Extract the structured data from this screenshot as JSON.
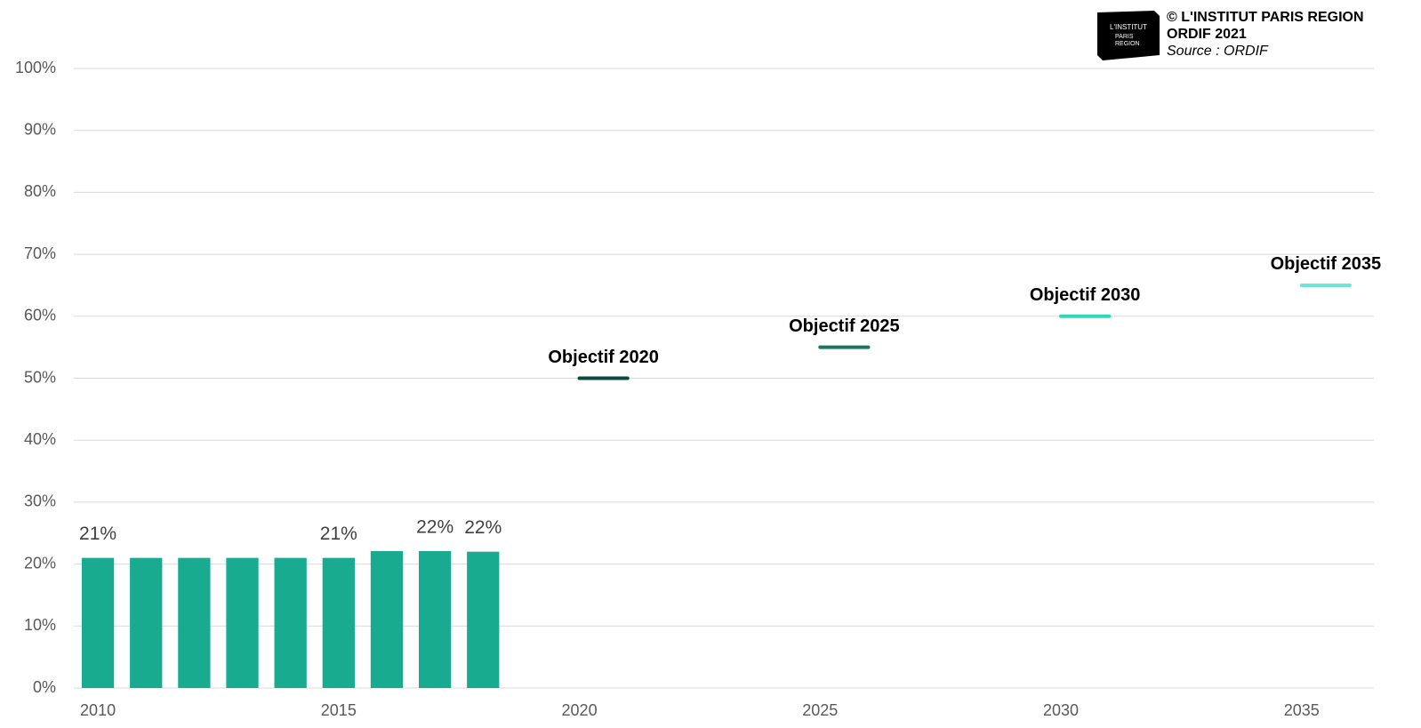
{
  "chart_data": {
    "type": "bar",
    "credit": [
      "© L'INSTITUT PARIS REGION",
      "ORDIF 2021"
    ],
    "source": "Source : ORDIF",
    "logo": [
      "L'INSTITUT",
      "PARIS",
      "REGION"
    ],
    "x": [
      2010,
      2011,
      2012,
      2013,
      2014,
      2015,
      2016,
      2017,
      2018
    ],
    "values": [
      21,
      21,
      21,
      21,
      21,
      21,
      22.1,
      22.1,
      22
    ],
    "value_labels": [
      "21%",
      null,
      null,
      null,
      null,
      "21%",
      null,
      "22%",
      "22%"
    ],
    "color": "#18ab8f",
    "objectives": [
      {
        "label": "Objectif 2020",
        "x": 2020,
        "value": 50,
        "color": "#0b4a3b"
      },
      {
        "label": "Objectif 2025",
        "x": 2025,
        "value": 55,
        "color": "#17775f"
      },
      {
        "label": "Objectif 2030",
        "x": 2030,
        "value": 60,
        "color": "#2ed8b5"
      },
      {
        "label": "Objectif 2035",
        "x": 2035,
        "value": 65,
        "color": "#6de6d3"
      }
    ],
    "xlim": [
      2009.5,
      2036.5
    ],
    "xticks": [
      2010,
      2015,
      2020,
      2025,
      2030,
      2035
    ],
    "ylim": [
      0,
      100
    ],
    "yticks": [
      {
        "value": 0,
        "label": "0%"
      },
      {
        "value": 10,
        "label": "10%"
      },
      {
        "value": 20,
        "label": "20%"
      },
      {
        "value": 30,
        "label": "30%"
      },
      {
        "value": 40,
        "label": "40%"
      },
      {
        "value": 50,
        "label": "50%"
      },
      {
        "value": 60,
        "label": "60%"
      },
      {
        "value": 70,
        "label": "70%"
      },
      {
        "value": 80,
        "label": "80%"
      },
      {
        "value": 90,
        "label": "90%"
      },
      {
        "value": 100,
        "label": "100%"
      }
    ],
    "grid": true
  }
}
